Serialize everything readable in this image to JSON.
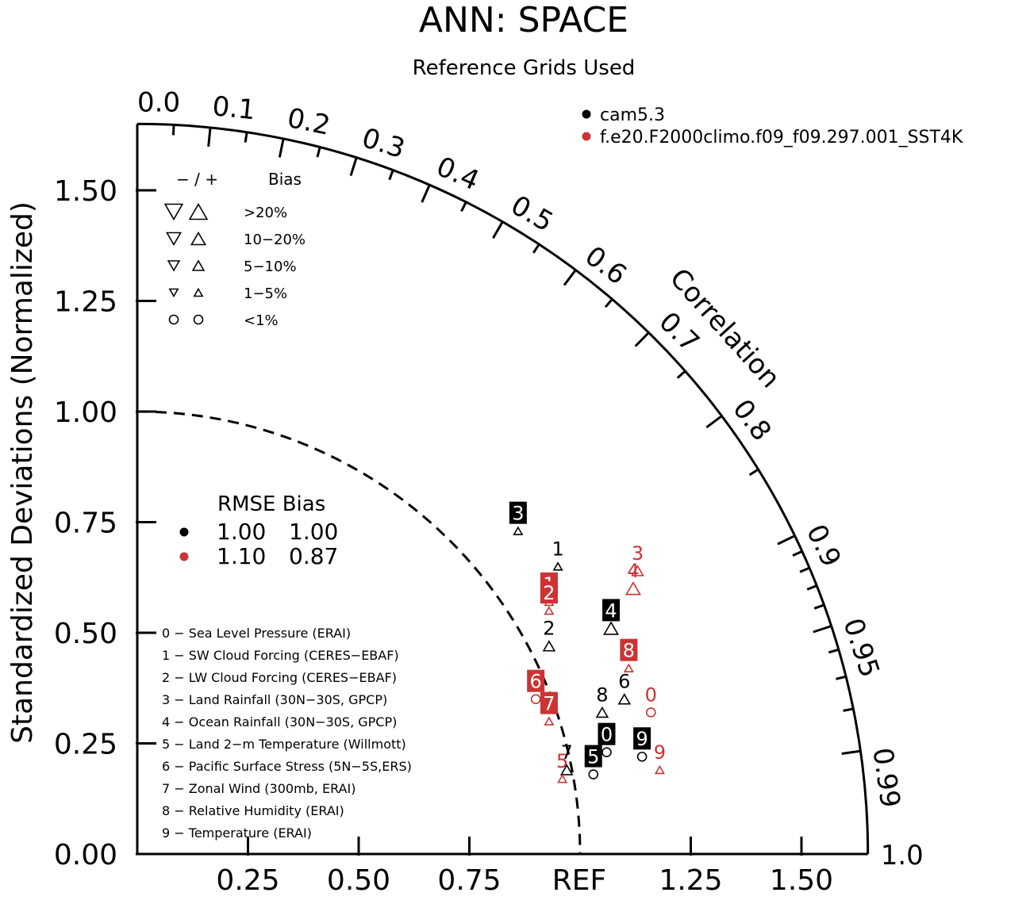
{
  "chart_data": {
    "type": "scatter",
    "subtype": "taylor-diagram",
    "title": "ANN: SPACE",
    "subtitle": "Reference Grids Used",
    "ylabel": "Standardized Deviations (Normalized)",
    "arc_label": "Correlation",
    "ref_label": "REF",
    "ylim": [
      0,
      1.65
    ],
    "xlim": [
      0,
      1.65
    ],
    "std_ticks": [
      0.0,
      0.25,
      0.5,
      0.75,
      1.0,
      1.25,
      1.5
    ],
    "std_tick_labels": [
      "0.00",
      "0.25",
      "0.50",
      "0.75",
      "1.00",
      "1.25",
      "1.50"
    ],
    "x_ticks": [
      0.25,
      0.5,
      0.75,
      1.25,
      1.5
    ],
    "x_tick_labels": [
      "0.25",
      "0.50",
      "0.75",
      "1.25",
      "1.50"
    ],
    "corr_labels": [
      {
        "r": 0.0,
        "text": "0.0"
      },
      {
        "r": 0.1,
        "text": "0.1"
      },
      {
        "r": 0.2,
        "text": "0.2"
      },
      {
        "r": 0.3,
        "text": "0.3"
      },
      {
        "r": 0.4,
        "text": "0.4"
      },
      {
        "r": 0.5,
        "text": "0.5"
      },
      {
        "r": 0.6,
        "text": "0.6"
      },
      {
        "r": 0.7,
        "text": "0.7"
      },
      {
        "r": 0.8,
        "text": "0.8"
      },
      {
        "r": 0.9,
        "text": "0.9"
      },
      {
        "r": 0.95,
        "text": "0.95"
      },
      {
        "r": 0.99,
        "text": "0.99"
      },
      {
        "r": 1.0,
        "text": "1.0"
      }
    ],
    "corr_minor_ticks": [
      0.05,
      0.15,
      0.25,
      0.35,
      0.45,
      0.55,
      0.65,
      0.75,
      0.85,
      0.91,
      0.92,
      0.93,
      0.94,
      0.96,
      0.97,
      0.98
    ],
    "series_legend": [
      {
        "name": "cam5.3",
        "color": "#000000"
      },
      {
        "name": "f.e20.F2000climo.f09_f09.297.001_SST4K",
        "color": "#cc3333"
      }
    ],
    "bias_legend": {
      "header_signs": "−  /  +",
      "header": "Bias",
      "rows": [
        {
          "label": ">20%",
          "size": 4
        },
        {
          "label": "10−20%",
          "size": 3
        },
        {
          "label": "5−10%",
          "size": 2
        },
        {
          "label": "1−5%",
          "size": 1
        },
        {
          "label": "<1%",
          "size": 0
        }
      ]
    },
    "rmse_table": {
      "header": "RMSE Bias",
      "rows": [
        {
          "color": "#000000",
          "rmse": "1.00",
          "bias": "1.00"
        },
        {
          "color": "#cc3333",
          "rmse": "1.10",
          "bias": "0.87"
        }
      ]
    },
    "variables": [
      "0 − Sea Level Pressure (ERAI)",
      "1 − SW Cloud Forcing (CERES−EBAF)",
      "2 − LW Cloud Forcing (CERES−EBAF)",
      "3 − Land Rainfall (30N−30S, GPCP)",
      "4 − Ocean Rainfall (30N−30S, GPCP)",
      "5 − Land 2−m Temperature (Willmott)",
      "6 − Pacific Surface Stress (5N−5S,ERS)",
      "7 − Zonal Wind (300mb, ERAI)",
      "8 − Relative Humidity (ERAI)",
      "9 − Temperature (ERAI)"
    ],
    "series": [
      {
        "name": "cam5.3",
        "color": "#000000",
        "points": [
          {
            "id": "0",
            "x": 1.06,
            "y": 0.23,
            "boxed": true,
            "marker": "circle",
            "size": 0
          },
          {
            "id": "1",
            "x": 0.95,
            "y": 0.65,
            "boxed": false,
            "marker": "up",
            "size": 1
          },
          {
            "id": "2",
            "x": 0.93,
            "y": 0.47,
            "boxed": false,
            "marker": "up",
            "size": 2
          },
          {
            "id": "3",
            "x": 0.86,
            "y": 0.73,
            "boxed": true,
            "marker": "up",
            "size": 1
          },
          {
            "id": "4",
            "x": 1.07,
            "y": 0.51,
            "boxed": true,
            "marker": "up",
            "size": 3
          },
          {
            "id": "5",
            "x": 1.03,
            "y": 0.18,
            "boxed": true,
            "marker": "circle",
            "size": 0
          },
          {
            "id": "6",
            "x": 1.1,
            "y": 0.35,
            "boxed": false,
            "marker": "up",
            "size": 2
          },
          {
            "id": "7",
            "x": 0.97,
            "y": 0.19,
            "boxed": false,
            "marker": "up",
            "size": 2
          },
          {
            "id": "8",
            "x": 1.05,
            "y": 0.32,
            "boxed": false,
            "marker": "up",
            "size": 2
          },
          {
            "id": "9",
            "x": 1.14,
            "y": 0.22,
            "boxed": true,
            "marker": "circle",
            "size": 0
          }
        ]
      },
      {
        "name": "f.e20.F2000climo.f09_f09.297.001_SST4K",
        "color": "#cc3333",
        "points": [
          {
            "id": "0",
            "x": 1.16,
            "y": 0.32,
            "boxed": false,
            "marker": "circle",
            "size": 0
          },
          {
            "id": "1",
            "x": 0.93,
            "y": 0.57,
            "boxed": true,
            "marker": "up",
            "size": 1
          },
          {
            "id": "2",
            "x": 0.93,
            "y": 0.55,
            "boxed": true,
            "marker": "up",
            "size": 1
          },
          {
            "id": "3",
            "x": 1.13,
            "y": 0.64,
            "boxed": false,
            "marker": "up",
            "size": 2
          },
          {
            "id": "4",
            "x": 1.12,
            "y": 0.6,
            "boxed": false,
            "marker": "up",
            "size": 3
          },
          {
            "id": "5",
            "x": 0.96,
            "y": 0.17,
            "boxed": false,
            "marker": "up",
            "size": 1
          },
          {
            "id": "6",
            "x": 0.9,
            "y": 0.35,
            "boxed": true,
            "marker": "circle",
            "size": 0
          },
          {
            "id": "7",
            "x": 0.93,
            "y": 0.3,
            "boxed": true,
            "marker": "up",
            "size": 1
          },
          {
            "id": "8",
            "x": 1.11,
            "y": 0.42,
            "boxed": true,
            "marker": "up",
            "size": 1
          },
          {
            "id": "9",
            "x": 1.18,
            "y": 0.19,
            "boxed": false,
            "marker": "up",
            "size": 1
          }
        ]
      }
    ]
  }
}
